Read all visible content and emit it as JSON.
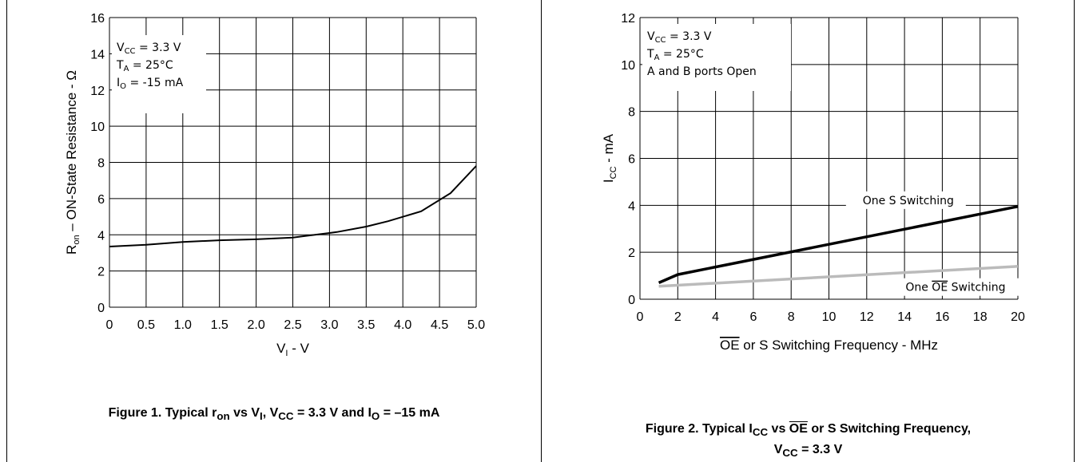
{
  "chart_data": [
    {
      "type": "line",
      "title": "Figure 1. Typical r",
      "title_parts": [
        "Figure 1. Typical r",
        "on",
        " vs V",
        "I",
        ", V",
        "CC",
        " = 3.3 V and I",
        "O",
        " = –15 mA"
      ],
      "xlabel": "V",
      "xlabel_sub": "I",
      "xlabel_suffix": " - V",
      "ylabel": "R",
      "ylabel_sub": "on",
      "ylabel_suffix": " – ON-State Resistance - Ω",
      "xlim": [
        0,
        5
      ],
      "ylim": [
        0,
        16
      ],
      "x_ticks": [
        "0",
        "0.5",
        "1.0",
        "1.5",
        "2.0",
        "2.5",
        "3.0",
        "3.5",
        "4.0",
        "4.5",
        "5.0"
      ],
      "y_ticks": [
        "0",
        "2",
        "4",
        "6",
        "8",
        "10",
        "12",
        "14",
        "16"
      ],
      "grid": true,
      "annotations": [
        {
          "main": "V",
          "sub": "CC",
          "rest": " = 3.3 V"
        },
        {
          "main": "T",
          "sub": "A",
          "rest": " = 25°C"
        },
        {
          "main": "I",
          "sub": "O",
          "rest": " = -15 mA"
        }
      ],
      "series": [
        {
          "color": "#000000",
          "x": [
            0,
            0.5,
            1.0,
            1.5,
            2.0,
            2.5,
            3.0,
            3.1,
            3.5,
            3.8,
            4.25,
            4.65,
            5.0
          ],
          "y": [
            3.35,
            3.45,
            3.6,
            3.7,
            3.75,
            3.85,
            4.1,
            4.15,
            4.45,
            4.75,
            5.3,
            6.3,
            7.8
          ]
        }
      ]
    },
    {
      "type": "line",
      "title_parts": [
        "Figure 2. Typical I",
        "CC",
        " vs ",
        "OE",
        " or S Switching Frequency,"
      ],
      "title_line2_parts": [
        "V",
        "CC",
        " = 3.3 V"
      ],
      "xlabel_parts": [
        "OE",
        " or S Switching Frequency - MHz"
      ],
      "ylabel": "I",
      "ylabel_sub": "CC",
      "ylabel_suffix": " - mA",
      "xlim": [
        0,
        20
      ],
      "ylim": [
        0,
        12
      ],
      "x_ticks": [
        "0",
        "2",
        "4",
        "6",
        "8",
        "10",
        "12",
        "14",
        "16",
        "18",
        "20"
      ],
      "y_ticks": [
        "0",
        "2",
        "4",
        "6",
        "8",
        "10",
        "12"
      ],
      "grid": true,
      "annotations": [
        {
          "main": "V",
          "sub": "CC",
          "rest": " = 3.3 V"
        },
        {
          "main": "T",
          "sub": "A",
          "rest": " = 25°C"
        },
        {
          "main": "A and B ports Open",
          "sub": "",
          "rest": ""
        }
      ],
      "series_labels": [
        "One S Switching",
        "One OE Switching"
      ],
      "series": [
        {
          "name": "One S Switching",
          "color": "#000000",
          "x": [
            1,
            2,
            20
          ],
          "y": [
            0.7,
            1.05,
            3.95
          ]
        },
        {
          "name": "One OE Switching",
          "color": "#bbbbbb",
          "x": [
            1,
            20
          ],
          "y": [
            0.55,
            1.4
          ]
        }
      ]
    }
  ]
}
